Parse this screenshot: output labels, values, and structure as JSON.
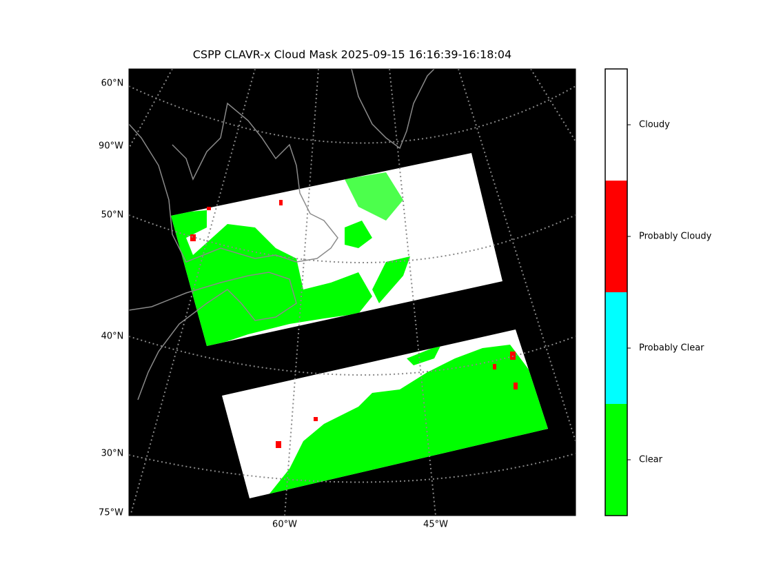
{
  "title": "CSPP CLAVR-x Cloud Mask 2025-09-15 16:16:39-16:18:04",
  "map": {
    "lat_labels": [
      "60°N",
      "90°W",
      "50°N",
      "40°N",
      "30°N",
      "75°W"
    ],
    "lon_labels": [
      "60°W",
      "45°W"
    ]
  },
  "colorbar": {
    "categories": [
      "Cloudy",
      "Probably Cloudy",
      "Probably Clear",
      "Clear"
    ],
    "colors": [
      "#ffffff",
      "#ff0000",
      "#00ffff",
      "#00ff00"
    ]
  }
}
